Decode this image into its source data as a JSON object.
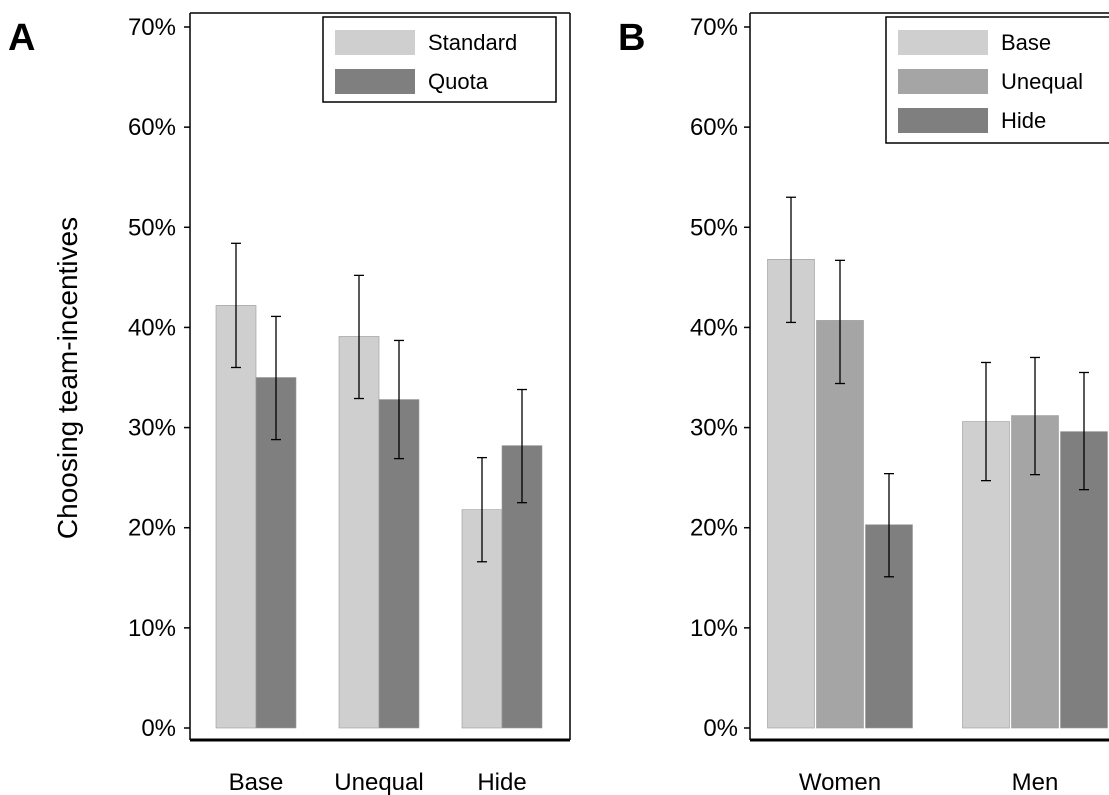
{
  "chart_data": [
    {
      "type": "bar",
      "panel_label": "A",
      "ylabel": "Choosing team-incentives",
      "ylim": [
        0,
        70
      ],
      "yticks": [
        "0%",
        "10%",
        "20%",
        "30%",
        "40%",
        "50%",
        "60%",
        "70%"
      ],
      "categories": [
        "Base",
        "Unequal",
        "Hide"
      ],
      "legend_position": "top-right",
      "series": [
        {
          "name": "Standard",
          "color": "#cfcfcf",
          "values": [
            42.2,
            39.1,
            21.8
          ],
          "ci_low": [
            36.0,
            32.9,
            16.6
          ],
          "ci_high": [
            48.4,
            45.2,
            27.0
          ]
        },
        {
          "name": "Quota",
          "color": "#7f7f7f",
          "values": [
            35.0,
            32.8,
            28.2
          ],
          "ci_low": [
            28.8,
            26.9,
            22.5
          ],
          "ci_high": [
            41.1,
            38.7,
            33.8
          ]
        }
      ]
    },
    {
      "type": "bar",
      "panel_label": "B",
      "ylim": [
        0,
        70
      ],
      "yticks": [
        "0%",
        "10%",
        "20%",
        "30%",
        "40%",
        "50%",
        "60%",
        "70%"
      ],
      "categories": [
        "Women",
        "Men"
      ],
      "legend_position": "top-right",
      "series": [
        {
          "name": "Base",
          "color": "#cfcfcf",
          "values": [
            46.8,
            30.6
          ],
          "ci_low": [
            40.5,
            24.7
          ],
          "ci_high": [
            53.0,
            36.5
          ]
        },
        {
          "name": "Unequal",
          "color": "#a5a5a5",
          "values": [
            40.7,
            31.2
          ],
          "ci_low": [
            34.4,
            25.3
          ],
          "ci_high": [
            46.7,
            37.0
          ]
        },
        {
          "name": "Hide",
          "color": "#7f7f7f",
          "values": [
            20.3,
            29.6
          ],
          "ci_low": [
            15.1,
            23.8
          ],
          "ci_high": [
            25.4,
            35.5
          ]
        }
      ]
    }
  ]
}
